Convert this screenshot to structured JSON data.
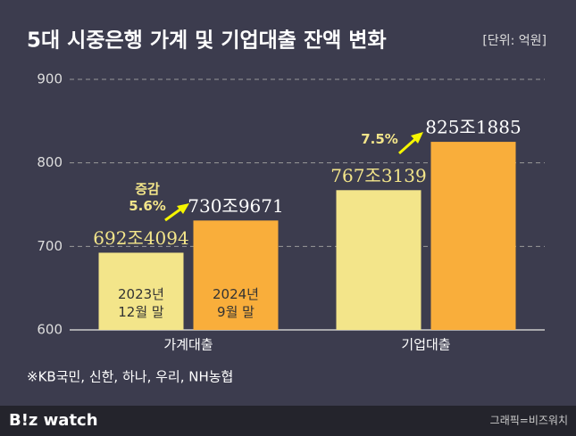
{
  "chart_data": {
    "type": "bar",
    "title": "5대 시중은행 가계 및 기업대출 잔액 변화",
    "subtitle": "[단위: 억원]",
    "categories": [
      "가계대출",
      "기업대출"
    ],
    "series": [
      {
        "name": "2023년\n12월 말",
        "color": "#f3e58a",
        "values": [
          692.4094,
          767.3139
        ],
        "value_labels": [
          "692조4094",
          "767조3139"
        ]
      },
      {
        "name": "2024년\n9월 말",
        "color": "#f9ae3b",
        "values": [
          730.9671,
          825.1885
        ],
        "value_labels": [
          "730조9671",
          "825조1885"
        ]
      }
    ],
    "ylim": [
      600,
      900
    ],
    "yticks": [
      600,
      700,
      800,
      900
    ],
    "grid": true,
    "annotations": [
      {
        "text": "증감\n5.6%"
      },
      {
        "text": "7.5%"
      }
    ],
    "note": "※KB국민, 신한, 하나, 우리, NH농협"
  },
  "footer": {
    "brand": "B!z watch",
    "credit": "그래픽=비즈워치"
  }
}
